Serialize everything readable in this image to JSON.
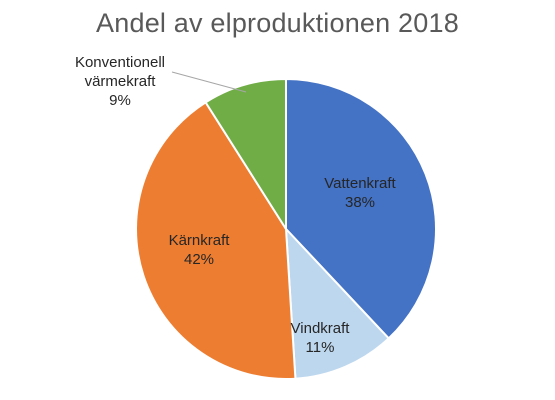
{
  "chart_data": {
    "type": "pie",
    "title": "Andel av elproduktionen 2018",
    "slices": [
      {
        "label": "Vattenkraft",
        "value": 38,
        "value_label": "38%",
        "color": "#4472C4",
        "label_color": "#262626"
      },
      {
        "label": "Vindkraft",
        "value": 11,
        "value_label": "11%",
        "color": "#BDD7EE",
        "label_color": "#262626"
      },
      {
        "label": "Kärnkraft",
        "value": 42,
        "value_label": "42%",
        "color": "#ED7D31",
        "label_color": "#262626"
      },
      {
        "label": "Konventionell värmekraft",
        "value": 9,
        "value_label": "9%",
        "color": "#70AD47",
        "label_color": "#262626",
        "label_lines": [
          "Konventionell",
          "värmekraft"
        ]
      }
    ],
    "start_angle": "12 o'clock",
    "direction": "clockwise",
    "legend": "none",
    "data_labels": "category name and percentage"
  }
}
